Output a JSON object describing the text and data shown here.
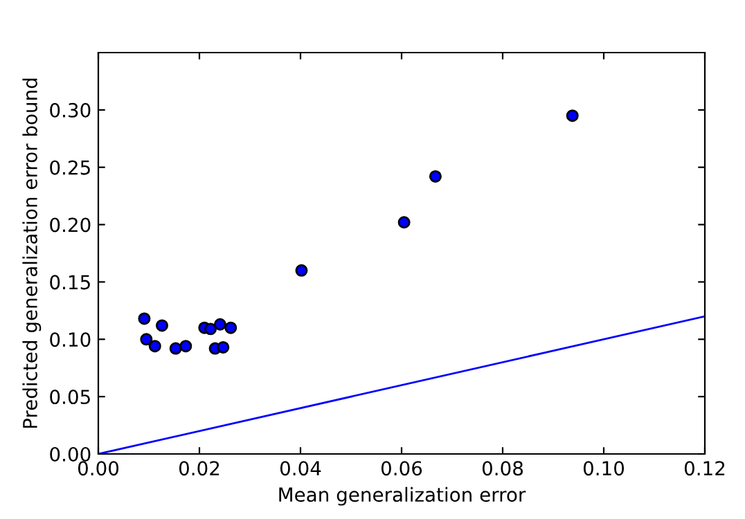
{
  "chart_data": {
    "type": "scatter",
    "xlabel": "Mean generalization error",
    "ylabel": "Predicted generalization error bound",
    "series": [
      {
        "color": "#0000ff",
        "marker": "circle",
        "x": [
          0.0091,
          0.0095,
          0.0112,
          0.0126,
          0.0153,
          0.0173,
          0.021,
          0.0222,
          0.0241,
          0.0231,
          0.0247,
          0.0262,
          0.0402,
          0.0605,
          0.0667,
          0.0938
        ],
        "values": [
          0.118,
          0.1,
          0.094,
          0.112,
          0.092,
          0.094,
          0.11,
          0.109,
          0.113,
          0.092,
          0.093,
          0.11,
          0.16,
          0.202,
          0.242,
          0.295
        ]
      },
      {
        "type": "line",
        "color": "#0000ff",
        "marker": "none",
        "line_style": "solid",
        "x": [
          0,
          0.12
        ],
        "values": [
          0,
          0.12
        ]
      }
    ],
    "xlim": [
      0,
      0.12
    ],
    "ylim": [
      0,
      0.35
    ],
    "xticks": [
      {
        "value": 0,
        "label": "0.00"
      },
      {
        "value": 0.02,
        "label": "0.02"
      },
      {
        "value": 0.04,
        "label": "0.04"
      },
      {
        "value": 0.06,
        "label": "0.06"
      },
      {
        "value": 0.08,
        "label": "0.08"
      },
      {
        "value": 0.1,
        "label": "0.10"
      },
      {
        "value": 0.12,
        "label": "0.12"
      }
    ],
    "yticks": [
      {
        "value": 0,
        "label": "0.00"
      },
      {
        "value": 0.05,
        "label": "0.05"
      },
      {
        "value": 0.1,
        "label": "0.10"
      },
      {
        "value": 0.15,
        "label": "0.15"
      },
      {
        "value": 0.2,
        "label": "0.20"
      },
      {
        "value": 0.25,
        "label": "0.25"
      },
      {
        "value": 0.3,
        "label": "0.30"
      }
    ],
    "grid": false
  }
}
